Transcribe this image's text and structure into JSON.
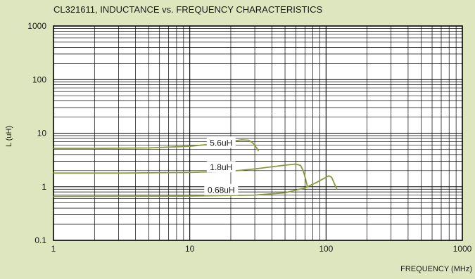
{
  "chart_data": {
    "type": "line",
    "title": "CL321611, INDUCTANCE vs. FREQUENCY CHARACTERISTICS",
    "xlabel": "FREQUENCY (MHz)",
    "ylabel": "L (uH)",
    "x_scale": "log",
    "y_scale": "log",
    "xlim": [
      1,
      1000
    ],
    "ylim": [
      0.1,
      1000
    ],
    "x_ticks": [
      "1",
      "10",
      "100",
      "1000"
    ],
    "y_ticks": [
      "1000",
      "100",
      "10",
      "1",
      "0.1"
    ],
    "grid": true,
    "series": [
      {
        "name": "5.6uH",
        "x": [
          1,
          2,
          5,
          10,
          15,
          20,
          24,
          27,
          29,
          31,
          32
        ],
        "y": [
          5.2,
          5.2,
          5.3,
          5.7,
          6.3,
          7.0,
          7.5,
          7.4,
          6.6,
          5.3,
          4.6
        ]
      },
      {
        "name": "1.8uH",
        "x": [
          1,
          3,
          10,
          20,
          30,
          45,
          55,
          60,
          65,
          68,
          71,
          73
        ],
        "y": [
          1.8,
          1.8,
          1.85,
          1.95,
          2.15,
          2.45,
          2.6,
          2.65,
          2.5,
          2.0,
          1.35,
          1.0
        ]
      },
      {
        "name": "0.68uH",
        "x": [
          1,
          10,
          30,
          50,
          70,
          85,
          95,
          105,
          110,
          115,
          120
        ],
        "y": [
          0.66,
          0.67,
          0.7,
          0.77,
          0.95,
          1.2,
          1.4,
          1.6,
          1.5,
          1.15,
          0.9
        ]
      }
    ],
    "annotations": [
      "5.6uH",
      "1.8uH",
      "0.68uH"
    ],
    "colors": {
      "background": "#dde6bf",
      "plot_bg": "#ffffff",
      "grid": "#000000",
      "curve": "#8a9a3c"
    }
  }
}
